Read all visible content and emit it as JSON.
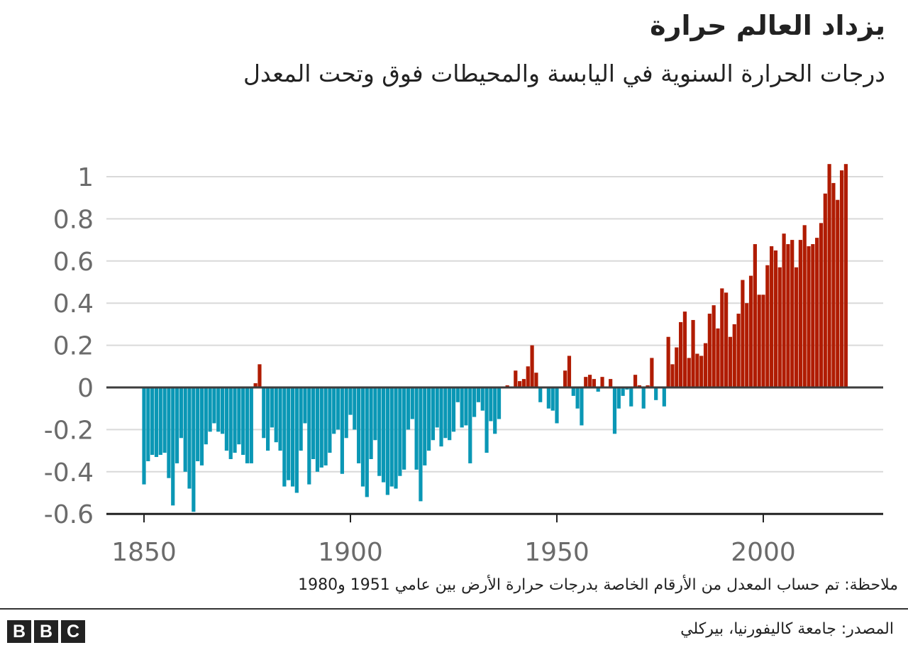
{
  "title": "يزداد العالم حرارة",
  "subtitle": "درجات الحرارة السنوية في اليابسة والمحيطات فوق وتحت المعدل",
  "note": "ملاحظة: تم حساب المعدل من الأرقام الخاصة بدرجات حرارة الأرض بين عامي 1951 و1980",
  "source": "المصدر: جامعة كاليفورنيا، بيركلي",
  "logo": "BBC",
  "colors": {
    "positive": "#b01c02",
    "negative": "#0a97b5",
    "grid": "#d9d9d9",
    "axis": "#3d3d3d",
    "tick_label": "#6b6b6b"
  },
  "chart_data": {
    "type": "bar",
    "title": "",
    "xlabel": "",
    "ylabel": "",
    "ylim": [
      -0.6,
      1.0
    ],
    "xlim": [
      1850,
      2020
    ],
    "grid": true,
    "y_ticks": [
      "1",
      "0.8",
      "0.6",
      "0.4",
      "0.2",
      "0",
      "-0.2",
      "-0.4",
      "-0.6"
    ],
    "y_tick_values": [
      1,
      0.8,
      0.6,
      0.4,
      0.2,
      0,
      -0.2,
      -0.4,
      -0.6
    ],
    "x_ticks": [
      "1850",
      "1900",
      "1950",
      "2000"
    ],
    "x_tick_values": [
      1850,
      1900,
      1950,
      2000
    ],
    "start_year": 1850,
    "values": [
      -0.46,
      -0.35,
      -0.32,
      -0.33,
      -0.32,
      -0.31,
      -0.43,
      -0.56,
      -0.36,
      -0.24,
      -0.4,
      -0.48,
      -0.59,
      -0.35,
      -0.37,
      -0.27,
      -0.21,
      -0.17,
      -0.21,
      -0.22,
      -0.3,
      -0.34,
      -0.31,
      -0.27,
      -0.32,
      -0.36,
      -0.36,
      0.02,
      0.11,
      -0.24,
      -0.3,
      -0.19,
      -0.26,
      -0.3,
      -0.47,
      -0.44,
      -0.47,
      -0.5,
      -0.3,
      -0.17,
      -0.46,
      -0.34,
      -0.4,
      -0.38,
      -0.37,
      -0.31,
      -0.22,
      -0.2,
      -0.41,
      -0.24,
      -0.13,
      -0.2,
      -0.36,
      -0.47,
      -0.52,
      -0.34,
      -0.25,
      -0.42,
      -0.45,
      -0.51,
      -0.47,
      -0.48,
      -0.42,
      -0.39,
      -0.2,
      -0.15,
      -0.39,
      -0.54,
      -0.37,
      -0.3,
      -0.25,
      -0.19,
      -0.28,
      -0.24,
      -0.25,
      -0.21,
      -0.07,
      -0.19,
      -0.18,
      -0.36,
      -0.14,
      -0.07,
      -0.11,
      -0.31,
      -0.16,
      -0.22,
      -0.15,
      0.0,
      0.01,
      0.0,
      0.08,
      0.03,
      0.04,
      0.1,
      0.2,
      0.07,
      -0.07,
      0.0,
      -0.1,
      -0.11,
      -0.17,
      0.0,
      0.08,
      0.15,
      -0.04,
      -0.1,
      -0.18,
      0.05,
      0.06,
      0.04,
      -0.02,
      0.05,
      0.0,
      0.04,
      -0.22,
      -0.1,
      -0.04,
      -0.01,
      -0.09,
      0.06,
      0.01,
      -0.1,
      0.01,
      0.14,
      -0.06,
      0.0,
      -0.09,
      0.24,
      0.11,
      0.19,
      0.31,
      0.36,
      0.14,
      0.32,
      0.16,
      0.15,
      0.21,
      0.35,
      0.39,
      0.28,
      0.47,
      0.45,
      0.24,
      0.3,
      0.35,
      0.51,
      0.4,
      0.53,
      0.68,
      0.44,
      0.44,
      0.58,
      0.67,
      0.65,
      0.57,
      0.73,
      0.68,
      0.7,
      0.57,
      0.7,
      0.77,
      0.67,
      0.68,
      0.71,
      0.78,
      0.92,
      1.06,
      0.97,
      0.89,
      1.03,
      1.06
    ]
  }
}
